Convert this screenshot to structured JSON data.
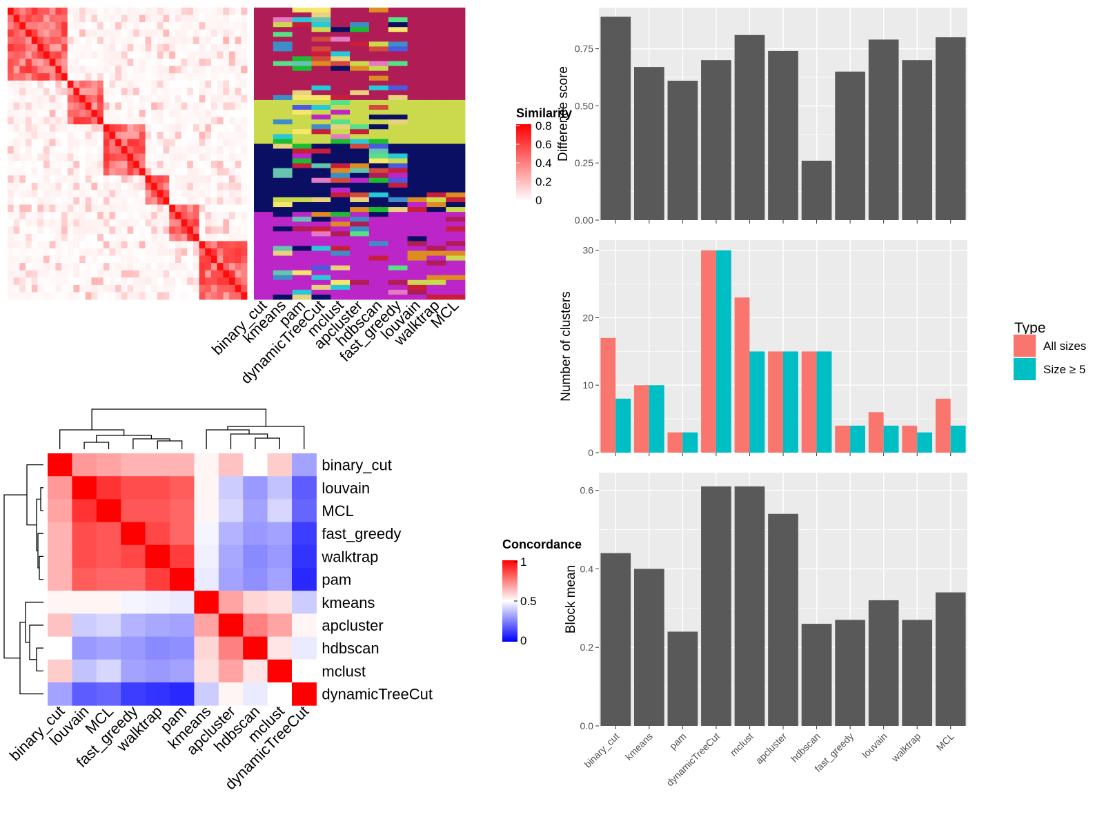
{
  "chart_data": [
    {
      "type": "heatmap",
      "name": "similarity-matrix",
      "legend_title": "Similarity",
      "legend_ticks": [
        "0.8",
        "0.6",
        "0.4",
        "0.2",
        "0"
      ],
      "block_sizes": [
        10,
        6,
        7,
        4,
        5,
        8
      ]
    },
    {
      "type": "heatmap",
      "name": "cluster-assignment-panel",
      "methods": [
        "binary_cut",
        "kmeans",
        "pam",
        "dynamicTreeCut",
        "mclust",
        "apcluster",
        "hdbscan",
        "fast_greedy",
        "louvain",
        "walktrap",
        "MCL"
      ],
      "palette": [
        "#B01C56",
        "#CBDA4C",
        "#0A0F64",
        "#BC25C7",
        "#C81E3C",
        "#DD8C22",
        "#3E8DC6",
        "#1DBB2F",
        "#E57AC2",
        "#56E088",
        "#66C3B0",
        "#4B5AE0",
        "#F6E76A",
        "#27C9D8",
        "#D34A3D",
        "#E9D17E"
      ]
    },
    {
      "type": "heatmap",
      "name": "concordance-heatmap",
      "legend_title": "Concordance",
      "legend_ticks": [
        "1",
        "0.5",
        "0"
      ],
      "labels": [
        "binary_cut",
        "louvain",
        "MCL",
        "fast_greedy",
        "walktrap",
        "pam",
        "kmeans",
        "apcluster",
        "hdbscan",
        "mclust",
        "dynamicTreeCut"
      ],
      "values": [
        [
          1.0,
          0.7,
          0.68,
          0.65,
          0.65,
          0.65,
          0.52,
          0.62,
          0.5,
          0.6,
          0.32
        ],
        [
          0.7,
          1.0,
          0.9,
          0.85,
          0.85,
          0.82,
          0.52,
          0.4,
          0.3,
          0.38,
          0.18
        ],
        [
          0.68,
          0.9,
          1.0,
          0.83,
          0.83,
          0.8,
          0.52,
          0.42,
          0.32,
          0.42,
          0.2
        ],
        [
          0.65,
          0.85,
          0.83,
          1.0,
          0.86,
          0.8,
          0.48,
          0.35,
          0.3,
          0.32,
          0.12
        ],
        [
          0.65,
          0.85,
          0.83,
          0.86,
          1.0,
          0.88,
          0.47,
          0.33,
          0.27,
          0.3,
          0.1
        ],
        [
          0.65,
          0.82,
          0.8,
          0.8,
          0.88,
          1.0,
          0.46,
          0.32,
          0.28,
          0.32,
          0.08
        ],
        [
          0.52,
          0.52,
          0.52,
          0.48,
          0.47,
          0.46,
          1.0,
          0.68,
          0.58,
          0.56,
          0.4
        ],
        [
          0.62,
          0.4,
          0.42,
          0.35,
          0.33,
          0.32,
          0.68,
          1.0,
          0.75,
          0.68,
          0.52
        ],
        [
          0.5,
          0.3,
          0.32,
          0.3,
          0.27,
          0.28,
          0.58,
          0.75,
          1.0,
          0.55,
          0.46
        ],
        [
          0.6,
          0.38,
          0.42,
          0.32,
          0.3,
          0.32,
          0.56,
          0.68,
          0.55,
          1.0,
          0.5
        ],
        [
          0.32,
          0.18,
          0.2,
          0.12,
          0.1,
          0.08,
          0.4,
          0.52,
          0.46,
          0.5,
          1.0
        ]
      ]
    },
    {
      "type": "bar",
      "name": "difference-score",
      "categories": [
        "binary_cut",
        "kmeans",
        "pam",
        "dynamicTreeCut",
        "mclust",
        "apcluster",
        "hdbscan",
        "fast_greedy",
        "louvain",
        "walktrap",
        "MCL"
      ],
      "values": [
        0.89,
        0.67,
        0.61,
        0.7,
        0.81,
        0.74,
        0.26,
        0.65,
        0.79,
        0.7,
        0.8
      ],
      "ylabel": "Difference score",
      "ylim": [
        0,
        0.93
      ],
      "yticks": [
        "0.00",
        "0.25",
        "0.50",
        "0.75"
      ],
      "color": "#595959",
      "grid": true
    },
    {
      "type": "bar",
      "name": "number-of-clusters",
      "categories": [
        "binary_cut",
        "kmeans",
        "pam",
        "dynamicTreeCut",
        "mclust",
        "apcluster",
        "hdbscan",
        "fast_greedy",
        "louvain",
        "walktrap",
        "MCL"
      ],
      "series": [
        {
          "name": "All sizes",
          "color": "#F8766D",
          "values": [
            17,
            10,
            3,
            30,
            23,
            15,
            15,
            4,
            6,
            4,
            8
          ]
        },
        {
          "name": "Size ≥ 5",
          "color": "#00BFC4",
          "values": [
            8,
            10,
            3,
            30,
            15,
            15,
            15,
            4,
            4,
            3,
            4
          ]
        }
      ],
      "ylabel": "Number of clusters",
      "ylim": [
        0,
        31.5
      ],
      "yticks": [
        "0",
        "10",
        "20",
        "30"
      ],
      "legend_title": "Type",
      "legend_position": "right",
      "grid": true
    },
    {
      "type": "bar",
      "name": "block-mean",
      "categories": [
        "binary_cut",
        "kmeans",
        "pam",
        "dynamicTreeCut",
        "mclust",
        "apcluster",
        "hdbscan",
        "fast_greedy",
        "louvain",
        "walktrap",
        "MCL"
      ],
      "values": [
        0.44,
        0.4,
        0.24,
        0.61,
        0.61,
        0.54,
        0.26,
        0.27,
        0.32,
        0.27,
        0.34
      ],
      "ylabel": "Block mean",
      "ylim": [
        0,
        0.645
      ],
      "yticks": [
        "0.0",
        "0.2",
        "0.4",
        "0.6"
      ],
      "color": "#595959",
      "grid": true
    }
  ]
}
